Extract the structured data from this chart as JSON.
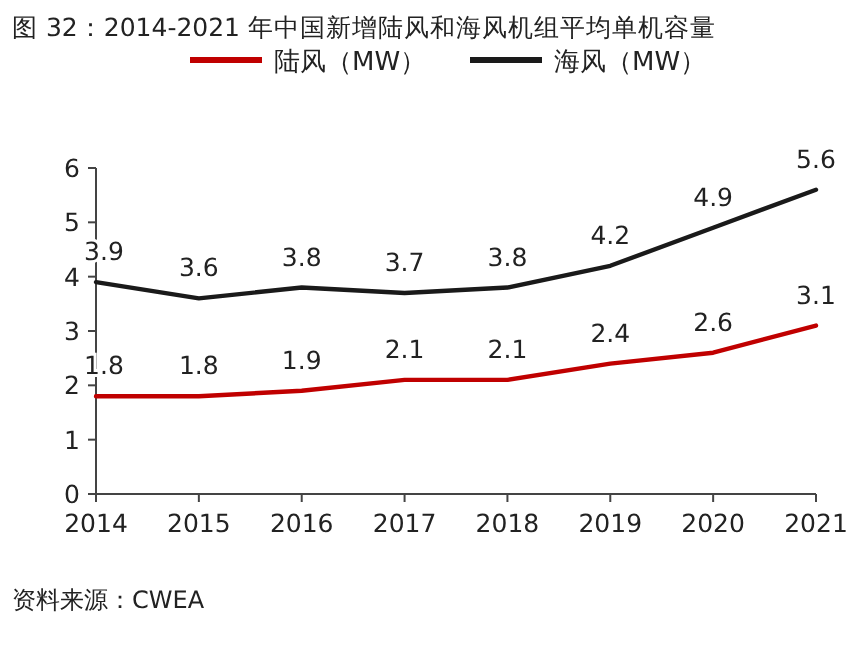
{
  "chart_data": {
    "type": "line",
    "title": "图 32：2014-2021 年中国新增陆风和海风机组平均单机容量",
    "categories": [
      "2014",
      "2015",
      "2016",
      "2017",
      "2018",
      "2019",
      "2020",
      "2021"
    ],
    "series": [
      {
        "name": "陆风（MW）",
        "color": "#c00000",
        "values": [
          1.8,
          1.8,
          1.9,
          2.1,
          2.1,
          2.4,
          2.6,
          3.1
        ]
      },
      {
        "name": "海风（MW）",
        "color": "#1a1a1a",
        "values": [
          3.9,
          3.6,
          3.8,
          3.7,
          3.8,
          4.2,
          4.9,
          5.6
        ]
      }
    ],
    "ylim": [
      0,
      6
    ],
    "yticks": [
      0,
      1,
      2,
      3,
      4,
      5,
      6
    ],
    "data_labels": true,
    "legend": "top",
    "grid": false,
    "marker": "none",
    "line_style": "solid",
    "annotations": [
      "资料来源：CWEA"
    ]
  }
}
